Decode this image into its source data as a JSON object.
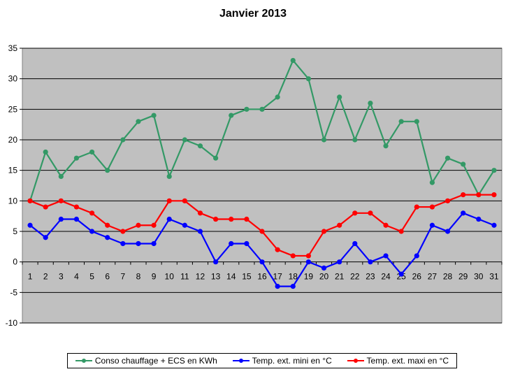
{
  "chart_data": {
    "type": "line",
    "title": "Janvier 2013",
    "xlabel": "",
    "ylabel": "",
    "ylim": [
      -10,
      35
    ],
    "yticks": [
      35,
      30,
      25,
      20,
      15,
      10,
      5,
      0,
      -5,
      -10
    ],
    "grid": true,
    "legend_position": "bottom",
    "plot_background": "#c0c0c0",
    "categories": [
      "1",
      "2",
      "3",
      "4",
      "5",
      "6",
      "7",
      "8",
      "9",
      "10",
      "11",
      "12",
      "13",
      "14",
      "15",
      "16",
      "17",
      "18",
      "19",
      "20",
      "21",
      "22",
      "23",
      "24",
      "25",
      "26",
      "27",
      "28",
      "29",
      "30",
      "31"
    ],
    "series": [
      {
        "name": "Conso chauffage + ECS en KWh",
        "color": "#339966",
        "values": [
          10,
          18,
          14,
          17,
          18,
          15,
          20,
          23,
          24,
          14,
          20,
          19,
          17,
          24,
          25,
          25,
          27,
          33,
          30,
          20,
          27,
          20,
          26,
          19,
          23,
          23,
          13,
          17,
          16,
          11,
          15
        ]
      },
      {
        "name": "Temp. ext. mini en °C",
        "color": "#0000ff",
        "values": [
          6,
          4,
          7,
          7,
          5,
          4,
          3,
          3,
          3,
          7,
          6,
          5,
          0,
          3,
          3,
          0,
          -4,
          -4,
          0,
          -1,
          0,
          3,
          0,
          1,
          -2,
          1,
          6,
          5,
          8,
          7,
          6
        ]
      },
      {
        "name": "Temp. ext. maxi en °C",
        "color": "#ff0000",
        "values": [
          10,
          9,
          10,
          9,
          8,
          6,
          5,
          6,
          6,
          10,
          10,
          8,
          7,
          7,
          7,
          5,
          2,
          1,
          1,
          5,
          6,
          8,
          8,
          6,
          5,
          9,
          9,
          10,
          11,
          11,
          11
        ]
      }
    ]
  }
}
